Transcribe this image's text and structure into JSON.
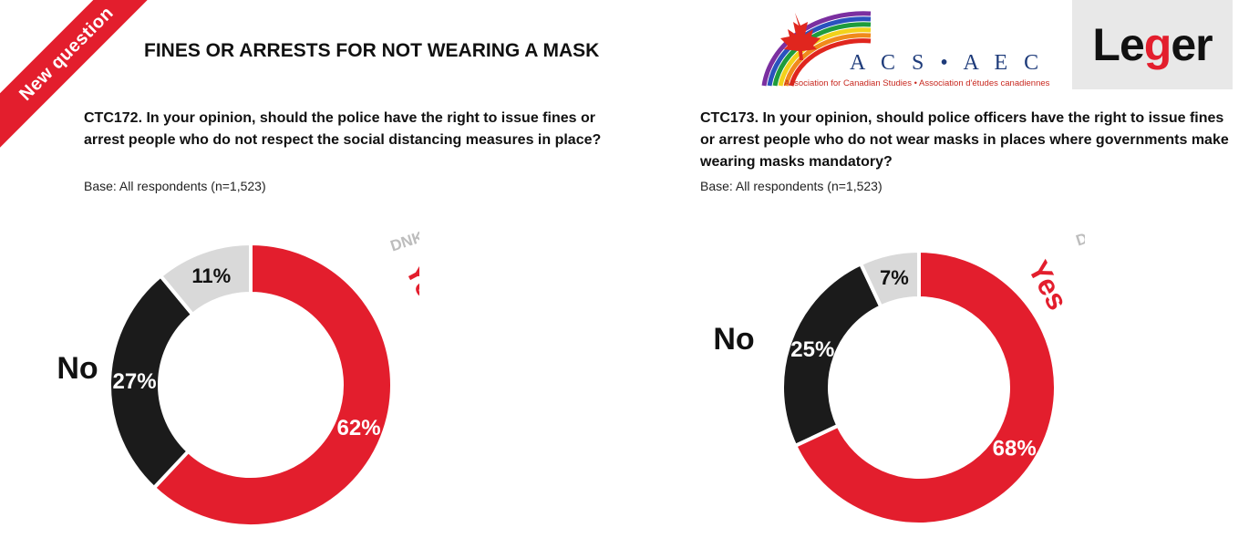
{
  "ribbon": "New question",
  "page_title": "FINES OR ARRESTS FOR NOT WEARING A MASK",
  "logos": {
    "acs_mark": "A C S • A E C",
    "acs_sub": "Association for Canadian Studies • Association d'études canadiennes",
    "leger_pre": "Le",
    "leger_g": "g",
    "leger_post": "er"
  },
  "colors": {
    "yes": "#e31e2d",
    "no": "#1b1b1b",
    "dnk": "#d9d9d9",
    "gap": "#ffffff"
  },
  "chart_data": [
    {
      "type": "pie",
      "question": "CTC172.  In your opinion, should the police have the right to issue fines or arrest people who do not respect the social distancing measures in place?",
      "base": "Base: All respondents (n=1,523)",
      "slices": [
        {
          "name": "Yes",
          "value": 62,
          "label": "62%"
        },
        {
          "name": "No",
          "value": 27,
          "label": "27%"
        },
        {
          "name": "DNK",
          "value": 11,
          "label": "11%"
        }
      ]
    },
    {
      "type": "pie",
      "question": "CTC173. In your opinion, should police officers have the right to issue fines or arrest people who do not wear masks in places where governments make wearing masks mandatory?",
      "base": "Base: All respondents (n=1,523)",
      "slices": [
        {
          "name": "Yes",
          "value": 68,
          "label": "68%"
        },
        {
          "name": "No",
          "value": 25,
          "label": "25%"
        },
        {
          "name": "DNK",
          "value": 7,
          "label": "7%"
        }
      ]
    }
  ]
}
